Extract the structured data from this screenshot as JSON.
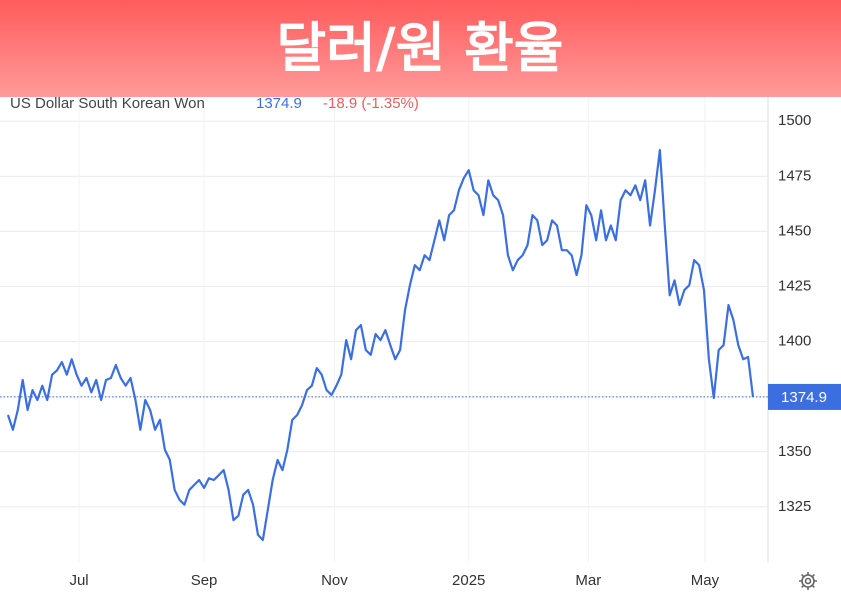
{
  "chart_data": {
    "type": "line",
    "title": "달러/원 환율",
    "series": [
      {
        "name": "US Dollar South Korean Won",
        "color": "#3b6fe0",
        "last": 1374.9,
        "change": "-18.9 (-1.35%)",
        "values": [
          1366.7,
          1360,
          1369,
          1382.6,
          1369,
          1378,
          1373.5,
          1380,
          1373.5,
          1385,
          1387,
          1390.7,
          1385,
          1392,
          1385,
          1380,
          1383.5,
          1377,
          1382.6,
          1373.5,
          1382.6,
          1383.5,
          1389.4,
          1383.5,
          1380,
          1383.5,
          1373.5,
          1360,
          1373.5,
          1369,
          1360,
          1364.5,
          1351,
          1346.4,
          1332.7,
          1328.2,
          1326,
          1332.7,
          1335,
          1337.2,
          1333.6,
          1338,
          1337.2,
          1339.4,
          1341.7,
          1332.7,
          1319,
          1321,
          1330.5,
          1332.7,
          1326,
          1312.3,
          1310,
          1323.6,
          1337.2,
          1346.3,
          1341.7,
          1351,
          1364.5,
          1366.7,
          1371.2,
          1378,
          1380,
          1388,
          1385,
          1378,
          1375.8,
          1380,
          1385,
          1400.7,
          1392,
          1405.2,
          1407.5,
          1396.2,
          1394,
          1403.4,
          1400.7,
          1405.2,
          1398.4,
          1392,
          1396.2,
          1414.3,
          1425.6,
          1434.7,
          1432.4,
          1439.2,
          1437,
          1446,
          1455,
          1446,
          1457.4,
          1459.6,
          1468.7,
          1474.2,
          1477.8,
          1468.7,
          1466.4,
          1457.4,
          1473.2,
          1466.4,
          1464.2,
          1457.4,
          1439.2,
          1432.4,
          1437,
          1439.2,
          1443.8,
          1457.4,
          1455,
          1443.8,
          1446,
          1455,
          1452.7,
          1441.5,
          1441.5,
          1439.2,
          1430.2,
          1439.2,
          1461.9,
          1457.4,
          1446,
          1459.6,
          1446,
          1452.7,
          1446,
          1464.2,
          1468.7,
          1466.4,
          1470.9,
          1464.2,
          1473.2,
          1452.7,
          1468.7,
          1486.9,
          1452.7,
          1421,
          1427.8,
          1416.6,
          1423.4,
          1425.6,
          1437,
          1434.7,
          1423.4,
          1392,
          1374.4,
          1396.2,
          1398.4,
          1416.6,
          1409.8,
          1398.4,
          1392,
          1393,
          1374.9
        ]
      }
    ],
    "xlim": [
      0,
      152
    ],
    "xticks": [
      {
        "value": 14.5,
        "label": "Jul"
      },
      {
        "value": 40,
        "label": "Sep"
      },
      {
        "value": 66.6,
        "label": "Nov"
      },
      {
        "value": 94,
        "label": "2025"
      },
      {
        "value": 118.4,
        "label": "Mar"
      },
      {
        "value": 142.2,
        "label": "May"
      }
    ],
    "ylim": [
      1300,
      1511
    ],
    "yticks": [
      1325,
      1350,
      1375,
      1400,
      1425,
      1450,
      1475,
      1500
    ],
    "grid": true
  }
}
